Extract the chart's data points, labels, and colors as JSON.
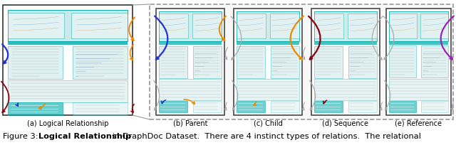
{
  "figure_number": "Figure 3:",
  "caption_bold": "Logical Relationship",
  "caption_rest": " in GraphDoc Dataset.  There are 4 instinct types of relations.  The relational",
  "subfig_labels": [
    "(a) Logical Relationship",
    "(b) Parent",
    "(c) Child",
    "(d) Sequence",
    "(e) Reference"
  ],
  "background_color": "#ffffff",
  "text_color": "#000000",
  "caption_fontsize": 8.2,
  "label_fontsize": 7.0,
  "fig_width": 6.4,
  "fig_height": 2.05,
  "dpi": 100,
  "doc_bg": "#cce8e8",
  "doc_border": "#00aaaa",
  "doc_border_dark": "#008888",
  "doc_inner_border": "#00aaaa",
  "doc_text_line": "#aaaaaa",
  "doc_plot_line": "#6699bb",
  "page_white": "#ffffff",
  "arrow_blue": "#2233cc",
  "arrow_orange": "#ee8800",
  "arrow_purple": "#9922bb",
  "arrow_darkred": "#880011",
  "arrow_gray": "#aaaaaa",
  "connecting_line_color": "#999999",
  "dashed_box_color": "#999999"
}
